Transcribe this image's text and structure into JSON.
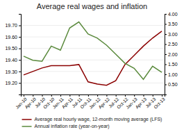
{
  "chart_data": {
    "type": "line",
    "title": "Average real wages and inflation",
    "categories": [
      "Jan-10",
      "Apr-10",
      "Jul-10",
      "Oct-10",
      "Jan-11",
      "Apr-11",
      "Jul-11",
      "Oct-11",
      "Jan-12",
      "Apr-12",
      "Jul-12",
      "Oct-12",
      "Jan-13",
      "Apr-13",
      "Jul-13",
      "Oct-13"
    ],
    "series": [
      {
        "name": "Average real hourly wage, 12-month moving average (LFS)",
        "color": "#8B0000",
        "values": [
          19.27,
          19.3,
          19.33,
          19.35,
          19.35,
          19.35,
          19.36,
          19.21,
          19.19,
          19.18,
          19.22,
          19.36,
          19.44,
          19.52,
          19.59,
          19.65
        ]
      },
      {
        "name": "Annual inflation rate (year-on-year)",
        "color": "#5a8a3c",
        "axis": "y2",
        "values": [
          1.9,
          1.7,
          1.65,
          2.4,
          2.2,
          3.3,
          3.6,
          3.0,
          2.8,
          2.45,
          2.0,
          1.55,
          1.3,
          0.75,
          1.4,
          1.1
        ]
      }
    ],
    "ylim": [
      19.1,
      19.8
    ],
    "yticks": [
      {
        "value": 19.2,
        "label": "19.20"
      },
      {
        "value": 19.3,
        "label": "19.30"
      },
      {
        "value": 19.4,
        "label": "19.40"
      },
      {
        "value": 19.5,
        "label": "19.50"
      },
      {
        "value": 19.6,
        "label": "19.60"
      },
      {
        "value": 19.7,
        "label": "19.70"
      }
    ],
    "y2lim": [
      0.0,
      4.0
    ],
    "y2ticks": [
      {
        "value": 0.5,
        "label": "0.50"
      },
      {
        "value": 1,
        "label": "1.00"
      },
      {
        "value": 1.5,
        "label": "1.50"
      },
      {
        "value": 2,
        "label": "2.00"
      },
      {
        "value": 2.5,
        "label": "2.50"
      },
      {
        "value": 3,
        "label": "3.00"
      },
      {
        "value": 3.5,
        "label": "3.50"
      },
      {
        "value": 4,
        "label": "4.00"
      }
    ],
    "grid": true,
    "legend": "bottom"
  }
}
